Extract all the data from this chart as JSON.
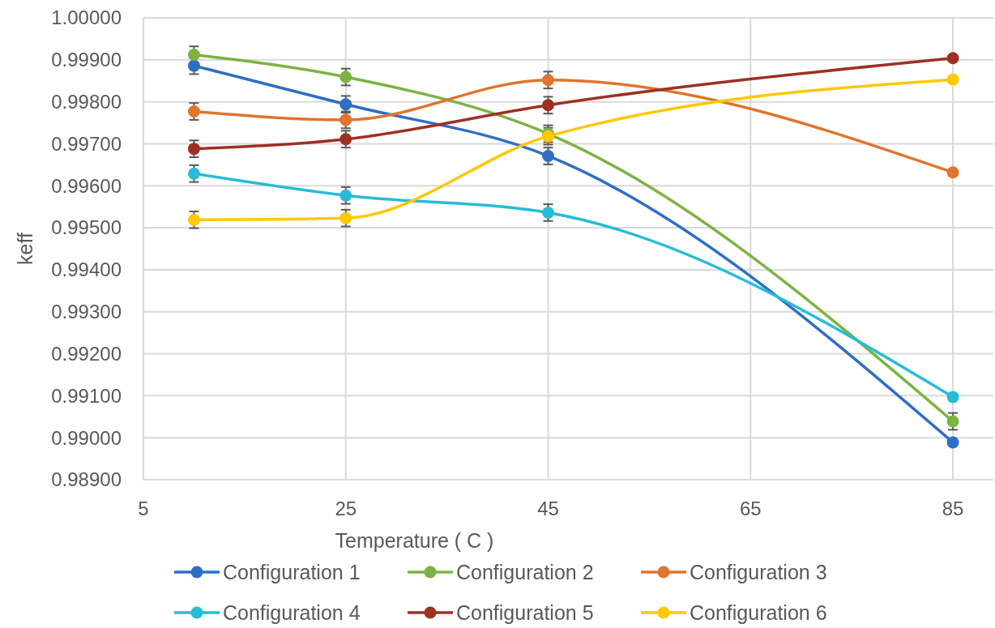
{
  "chart_data": {
    "type": "line",
    "xlabel": "Temperature ( C )",
    "ylabel": "keff",
    "x": [
      10,
      25,
      45,
      85
    ],
    "xlim": [
      5,
      89
    ],
    "xticks": [
      5,
      25,
      45,
      65,
      85
    ],
    "ylim": [
      0.989,
      1.0
    ],
    "yticks": [
      {
        "value": 0.989,
        "label": "0.98900"
      },
      {
        "value": 0.99,
        "label": "0.99000"
      },
      {
        "value": 0.991,
        "label": "0.99100"
      },
      {
        "value": 0.992,
        "label": "0.99200"
      },
      {
        "value": 0.993,
        "label": "0.99300"
      },
      {
        "value": 0.994,
        "label": "0.99400"
      },
      {
        "value": 0.995,
        "label": "0.99500"
      },
      {
        "value": 0.996,
        "label": "0.99600"
      },
      {
        "value": 0.997,
        "label": "0.99700"
      },
      {
        "value": 0.998,
        "label": "0.99800"
      },
      {
        "value": 0.999,
        "label": "0.99900"
      },
      {
        "value": 1.0,
        "label": "1.00000"
      }
    ],
    "grid": true,
    "legend": "bottom",
    "marker": "circle",
    "line_style": "solid",
    "series": [
      {
        "name": "Configuration 1",
        "color": "#2e6fc4",
        "values": [
          0.99886,
          0.99794,
          0.99671,
          0.98989
        ],
        "errors": [
          0.0002,
          0.0002,
          0.0002,
          null
        ]
      },
      {
        "name": "Configuration 2",
        "color": "#7cb342",
        "values": [
          0.99912,
          0.99859,
          0.99724,
          0.99039
        ],
        "errors": [
          0.0002,
          0.0002,
          0.0002,
          0.0002
        ]
      },
      {
        "name": "Configuration 3",
        "color": "#e0752d",
        "values": [
          0.99777,
          0.99757,
          0.99852,
          0.99632
        ],
        "errors": [
          0.0002,
          0.0002,
          0.0002,
          null
        ]
      },
      {
        "name": "Configuration 4",
        "color": "#26bcd7",
        "values": [
          0.99629,
          0.99577,
          0.99536,
          0.99097
        ],
        "errors": [
          0.0002,
          0.0002,
          0.0002,
          null
        ]
      },
      {
        "name": "Configuration 5",
        "color": "#9e3023",
        "values": [
          0.99688,
          0.99711,
          0.99792,
          0.99904
        ],
        "errors": [
          0.0002,
          0.0002,
          0.0002,
          null
        ]
      },
      {
        "name": "Configuration 6",
        "color": "#ffc800",
        "values": [
          0.99519,
          0.99523,
          0.99718,
          0.99853
        ],
        "errors": [
          0.0002,
          0.0002,
          0.0002,
          null
        ]
      }
    ]
  }
}
